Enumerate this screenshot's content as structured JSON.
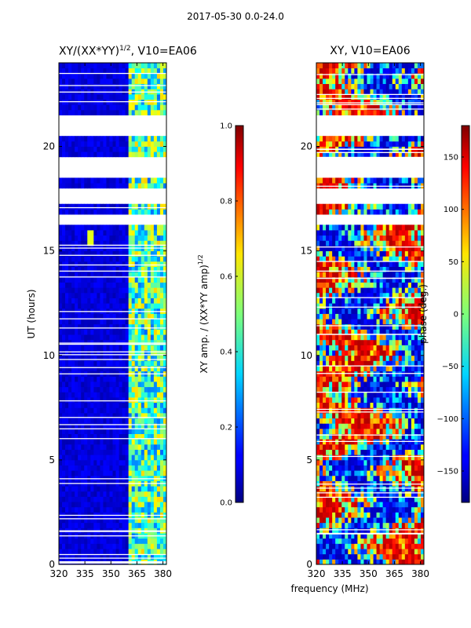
{
  "suptitle": "2017-05-30 0.0-24.0",
  "xlabel": "frequency (MHz)",
  "chart_data": [
    {
      "type": "heatmap",
      "panel": "left",
      "title": "XY/(XX*YY)",
      "title_exponent": "1/2",
      "title_suffix": ", V10=EA06",
      "xlabel": "frequency (MHz)",
      "ylabel": "UT (hours)",
      "xlim": [
        320,
        382
      ],
      "ylim": [
        0,
        24
      ],
      "xticks": [
        320,
        335,
        350,
        365,
        380
      ],
      "yticks": [
        0,
        5,
        10,
        15,
        20
      ],
      "colorbar": {
        "label": "XY amp. / (XX*YY amp)",
        "label_exponent": "1/2",
        "range": [
          0.0,
          1.0
        ],
        "ticks": [
          "0.0",
          "0.2",
          "0.4",
          "0.6",
          "0.8",
          "1.0"
        ]
      },
      "value_summary": {
        "low_band_MHz": [
          320,
          360
        ],
        "low_band_level": 0.05,
        "high_band_MHz": [
          360,
          382
        ],
        "high_band_level": 0.45,
        "hotspot": {
          "freq": 338,
          "ut": 15.6,
          "value": 0.6
        }
      },
      "flagged_ut_ranges": [
        [
          17.2,
          17.9
        ],
        [
          18.4,
          19.0
        ],
        [
          19.1,
          19.6
        ],
        [
          20.6,
          21.0
        ],
        [
          21.1,
          21.5
        ],
        [
          16.2,
          16.8
        ]
      ]
    },
    {
      "type": "heatmap",
      "panel": "right",
      "title": "XY, V10=EA06",
      "xlabel": "frequency (MHz)",
      "ylabel": "",
      "xlim": [
        320,
        382
      ],
      "ylim": [
        0,
        24
      ],
      "xticks": [
        320,
        335,
        350,
        365,
        380
      ],
      "yticks": [
        0,
        5,
        10,
        15,
        20
      ],
      "colorbar": {
        "label": "phase (deg.)",
        "range": [
          -180,
          180
        ],
        "ticks": [
          "−150",
          "−100",
          "−50",
          "0",
          "50",
          "100",
          "150"
        ]
      },
      "flagged_ut_ranges": [
        [
          17.2,
          17.9
        ],
        [
          18.4,
          19.0
        ],
        [
          19.1,
          19.6
        ],
        [
          20.6,
          21.0
        ],
        [
          21.1,
          21.5
        ],
        [
          16.2,
          16.8
        ]
      ]
    }
  ]
}
